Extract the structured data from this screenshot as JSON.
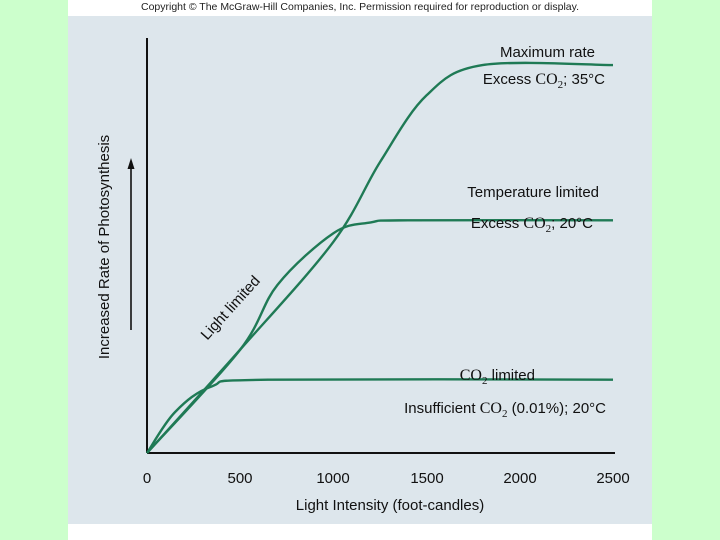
{
  "page": {
    "copyright": "Copyright © The McGraw-Hill Companies, Inc. Permission required for reproduction or display."
  },
  "colors": {
    "slide_bg": "#ccffcc",
    "panel_bg": "#dde6ec",
    "curve": "#1f7a55"
  },
  "chart_data": {
    "type": "line",
    "title": "",
    "xlabel": "Light Intensity (foot-candles)",
    "ylabel": "Increased Rate of Photosynthesis",
    "xlim": [
      0,
      2500
    ],
    "ylim": [
      0,
      10
    ],
    "x_ticks": [
      "0",
      "500",
      "1000",
      "1500",
      "2000",
      "2500"
    ],
    "grid": false,
    "series": [
      {
        "name": "Maximum rate",
        "condition": {
          "prefix": "Excess ",
          "chem": "CO",
          "sub": "2",
          "suffix": "; 35°C"
        },
        "points": [
          [
            0,
            0
          ],
          [
            500,
            2.4
          ],
          [
            1000,
            4.9
          ],
          [
            1250,
            6.75
          ],
          [
            1500,
            8.3
          ],
          [
            1800,
            9.0
          ],
          [
            2500,
            9.0
          ]
        ]
      },
      {
        "name": "Temperature limited",
        "condition": {
          "prefix": "Excess ",
          "chem": "CO",
          "sub": "2",
          "suffix": "; 20°C"
        },
        "points": [
          [
            0,
            0
          ],
          [
            500,
            2.4
          ],
          [
            700,
            3.9
          ],
          [
            1000,
            5.1
          ],
          [
            1200,
            5.35
          ],
          [
            1400,
            5.4
          ],
          [
            2500,
            5.4
          ]
        ]
      },
      {
        "name_chem": "CO",
        "name_sub": "2",
        "name_suffix": " limited",
        "condition": {
          "prefix": "Insufficient ",
          "chem": "CO",
          "sub": "2",
          "suffix": " (0.01%); 20°C"
        },
        "points": [
          [
            0,
            0
          ],
          [
            150,
            0.95
          ],
          [
            350,
            1.55
          ],
          [
            650,
            1.7
          ],
          [
            2500,
            1.7
          ]
        ]
      }
    ],
    "annotations": {
      "light_limited": "Light limited"
    }
  }
}
